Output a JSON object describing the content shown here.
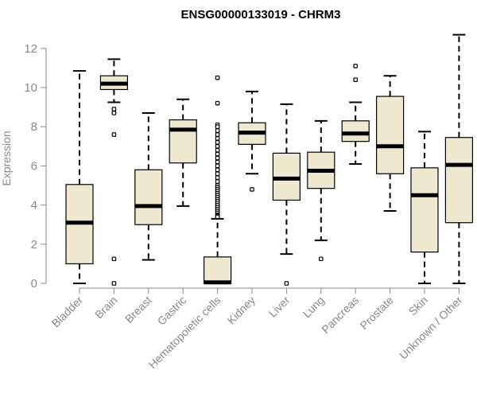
{
  "chart_data": {
    "type": "box",
    "title": "ENSG00000133019 - CHRM3",
    "ylabel": "Expression",
    "xlabel": "",
    "ylim": [
      0,
      12.5
    ],
    "yticks": [
      "0",
      "2",
      "4",
      "6",
      "8",
      "10",
      "12"
    ],
    "box_fill": "#efe8d1",
    "box_stroke": "#000000",
    "axis_color": "#8a8a8a",
    "categories": [
      "Bladder",
      "Brain",
      "Breast",
      "Gastric",
      "Hematopoietic cells",
      "Kidney",
      "Liver",
      "Lung",
      "Pancreas",
      "Prostate",
      "Skin",
      "Unknown / Other"
    ],
    "boxes": [
      {
        "min": 0.0,
        "q1": 1.0,
        "median": 3.1,
        "q3": 5.05,
        "max": 10.85,
        "outliers": []
      },
      {
        "min": 9.25,
        "q1": 9.9,
        "median": 10.2,
        "q3": 10.6,
        "max": 11.45,
        "outliers": [
          8.9,
          8.7,
          7.6,
          1.25,
          0.0
        ]
      },
      {
        "min": 1.2,
        "q1": 3.0,
        "median": 3.95,
        "q3": 5.8,
        "max": 8.7,
        "outliers": []
      },
      {
        "min": 3.95,
        "q1": 6.15,
        "median": 7.85,
        "q3": 8.35,
        "max": 9.4,
        "outliers": []
      },
      {
        "min": 0.0,
        "q1": 0.0,
        "median": 0.05,
        "q3": 1.35,
        "max": 3.3,
        "outliers": [
          10.5,
          9.2,
          8.1,
          8.0,
          7.8,
          7.6,
          7.4,
          7.2,
          7.0,
          6.8,
          6.6,
          6.4,
          6.2,
          6.0,
          5.8,
          5.6,
          5.4,
          5.2,
          5.0,
          4.9,
          4.8,
          4.7,
          4.6,
          4.5,
          4.4,
          4.3,
          4.2,
          4.1,
          4.0,
          3.9,
          3.8,
          3.7,
          3.6,
          3.5,
          3.45,
          3.4
        ]
      },
      {
        "min": 5.6,
        "q1": 7.1,
        "median": 7.7,
        "q3": 8.2,
        "max": 9.8,
        "outliers": [
          4.8
        ]
      },
      {
        "min": 1.5,
        "q1": 4.25,
        "median": 5.35,
        "q3": 6.65,
        "max": 9.15,
        "outliers": [
          0.0
        ]
      },
      {
        "min": 2.2,
        "q1": 4.85,
        "median": 5.75,
        "q3": 6.7,
        "max": 8.3,
        "outliers": [
          1.25
        ]
      },
      {
        "min": 6.1,
        "q1": 7.25,
        "median": 7.65,
        "q3": 8.3,
        "max": 9.25,
        "outliers": [
          11.1,
          10.4
        ]
      },
      {
        "min": 3.7,
        "q1": 5.6,
        "median": 7.0,
        "q3": 9.55,
        "max": 10.6,
        "outliers": []
      },
      {
        "min": 0.0,
        "q1": 1.6,
        "median": 4.5,
        "q3": 5.9,
        "max": 7.75,
        "outliers": []
      },
      {
        "min": 0.0,
        "q1": 3.1,
        "median": 6.05,
        "q3": 7.45,
        "max": 12.7,
        "outliers": []
      }
    ]
  }
}
